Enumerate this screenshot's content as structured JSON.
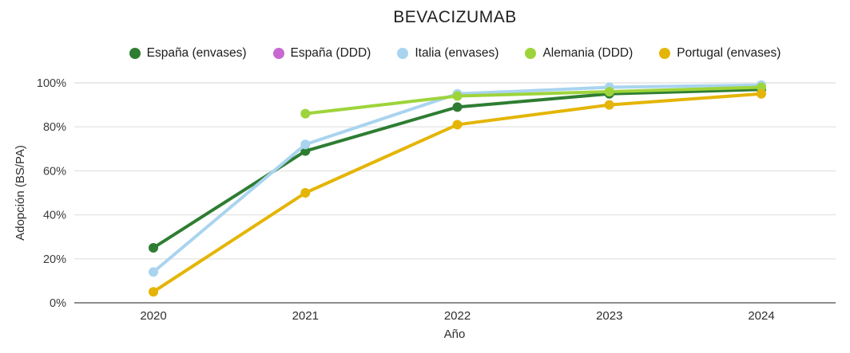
{
  "chart_data": {
    "type": "line",
    "title": "BEVACIZUMAB",
    "xlabel": "Año",
    "ylabel": "Adopción (BS/PA)",
    "categories": [
      "2020",
      "2021",
      "2022",
      "2023",
      "2024"
    ],
    "ytick_values": [
      0,
      20,
      40,
      60,
      80,
      100
    ],
    "ytick_labels": [
      "0%",
      "20%",
      "40%",
      "60%",
      "80%",
      "100%"
    ],
    "ylim": [
      0,
      100
    ],
    "grid": "horizontal",
    "legend_position": "top",
    "series": [
      {
        "name": "España (envases)",
        "color": "#2e7d32",
        "values": [
          25,
          69,
          89,
          95,
          97
        ]
      },
      {
        "name": "España (DDD)",
        "color": "#c769d0",
        "values": [
          null,
          null,
          null,
          null,
          null
        ]
      },
      {
        "name": "Italia (envases)",
        "color": "#a9d4ef",
        "values": [
          14,
          72,
          95,
          98,
          99
        ]
      },
      {
        "name": "Alemania (DDD)",
        "color": "#9ed43b",
        "values": [
          null,
          86,
          94,
          96,
          98
        ]
      },
      {
        "name": "Portugal (envases)",
        "color": "#e4b506",
        "values": [
          5,
          50,
          81,
          90,
          95
        ]
      }
    ],
    "colors": {
      "gridline": "#e4e4e4",
      "axis_line": "#8c8c8c",
      "tick_label": "#3b3b3b",
      "axis_title": "#2e2e2e",
      "title": "#1f1f1f",
      "background": "#ffffff"
    }
  }
}
